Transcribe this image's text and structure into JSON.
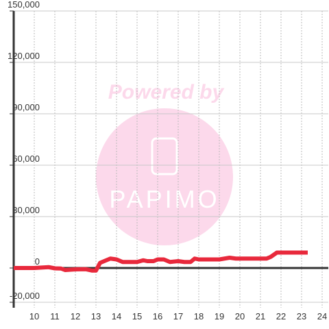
{
  "chart_data": {
    "type": "line",
    "annotations": [
      "Powered by",
      "PAPIMO"
    ],
    "x": [
      9,
      10,
      10.7,
      11,
      11.3,
      11.5,
      12,
      12.5,
      12.8,
      13,
      13.2,
      13.5,
      13.7,
      14,
      14.3,
      15,
      15.3,
      15.5,
      15.8,
      16,
      16.3,
      16.6,
      17,
      17.3,
      17.6,
      17.8,
      18,
      19,
      19.5,
      19.8,
      21,
      21.3,
      21.5,
      21.8,
      22,
      23.3
    ],
    "series": [
      {
        "color": "#e8293c",
        "values": [
          0,
          0,
          500,
          -200,
          -300,
          -1200,
          -800,
          -700,
          -1500,
          -1500,
          3000,
          4500,
          5500,
          5000,
          3500,
          3500,
          4500,
          4000,
          4000,
          5000,
          5000,
          3500,
          4000,
          3500,
          3500,
          5500,
          5000,
          5000,
          6000,
          5500,
          5500,
          5500,
          6500,
          9000,
          9000,
          9000
        ]
      }
    ],
    "xlim": [
      9,
      24.3
    ],
    "ylim": [
      -20000,
      150000
    ],
    "xticks": [
      10,
      11,
      12,
      13,
      14,
      15,
      16,
      17,
      18,
      19,
      20,
      21,
      22,
      23,
      24
    ],
    "yticks": [
      {
        "value": -20000,
        "label": "-20,000"
      },
      0,
      {
        "value": 30000,
        "label": "30,000"
      },
      {
        "value": 60000,
        "label": "60,000"
      },
      {
        "value": 90000,
        "label": "90,000"
      },
      {
        "value": 120000,
        "label": "120,000"
      },
      {
        "value": 150000,
        "label": "150,000"
      }
    ],
    "grid": true
  }
}
